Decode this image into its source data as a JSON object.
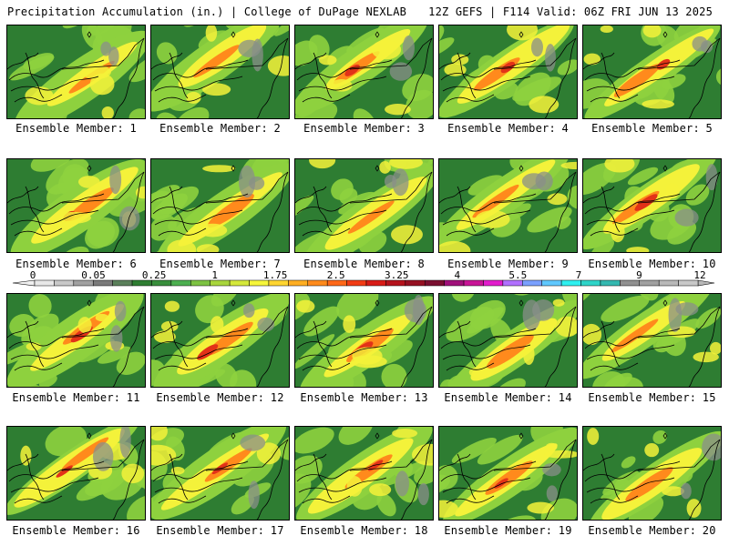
{
  "header": {
    "title_left": "Precipitation Accumulation (in.) | College of DuPage NEXLAB",
    "title_right": "12Z GEFS | F114 Valid: 06Z FRI JUN 13 2025"
  },
  "member_label_prefix": "Ensemble Member:",
  "members": [
    "1",
    "2",
    "3",
    "4",
    "5",
    "6",
    "7",
    "8",
    "9",
    "10",
    "11",
    "12",
    "13",
    "14",
    "15",
    "16",
    "17",
    "18",
    "19",
    "20"
  ],
  "colorbar": {
    "tick_labels": [
      "0",
      "0.05",
      "0.25",
      "1",
      "1.75",
      "2.5",
      "3.25",
      "4",
      "5.5",
      "7",
      "9",
      "12"
    ],
    "bin_colors": [
      "#e8e8e8",
      "#c8c8c8",
      "#a0a0a0",
      "#7a7a7a",
      "#5a7f5a",
      "#2e7d32",
      "#388e3c",
      "#4caf50",
      "#7cc242",
      "#a8d53c",
      "#d4e83a",
      "#f6f63a",
      "#ffd530",
      "#ffae22",
      "#ff8a1c",
      "#ff6818",
      "#f23b14",
      "#d81b16",
      "#b5121c",
      "#951022",
      "#7a0f30",
      "#a0107a",
      "#c81496",
      "#e21ccc",
      "#b070ff",
      "#7aa0ff",
      "#60c8ff",
      "#2ef0f0",
      "#2ed4c8",
      "#34b8b0",
      "#909090",
      "#a0a0a0",
      "#b8b8b8",
      "#c8c8c8"
    ]
  },
  "palette": {
    "no_precip": "#e8e8e8",
    "low": "#2e7d32",
    "moderate": "#8ed13e",
    "high": "#f4f23a",
    "heavy": "#ff8a1c",
    "extreme": "#e23218"
  }
}
